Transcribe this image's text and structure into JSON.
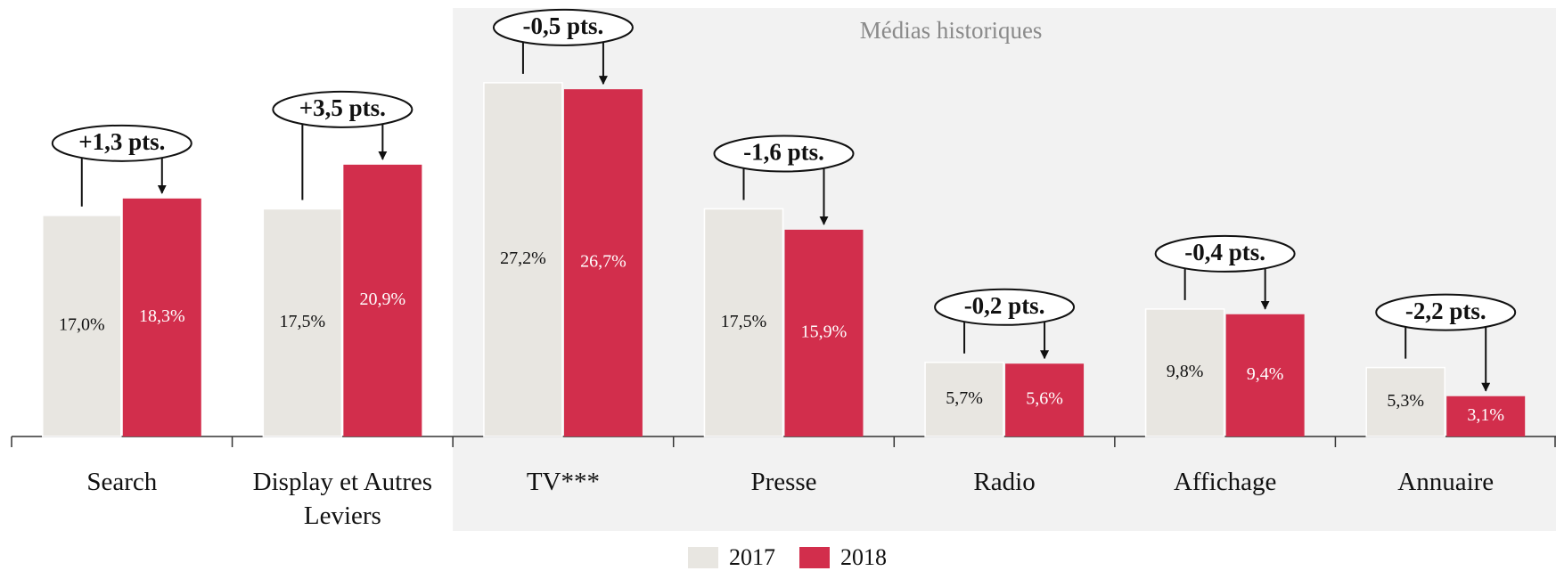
{
  "chart_data": {
    "type": "bar",
    "categories": [
      "Search",
      "Display et Autres Leviers",
      "TV***",
      "Presse",
      "Radio",
      "Affichage",
      "Annuaire"
    ],
    "series": [
      {
        "name": "2017",
        "color": "#e8e6e1",
        "label_color": "#111111",
        "values": [
          17.0,
          17.5,
          27.2,
          17.5,
          5.7,
          9.8,
          5.3
        ],
        "value_labels": [
          "17,0%",
          "17,5%",
          "27,2%",
          "17,5%",
          "5,7%",
          "9,8%",
          "5,3%"
        ]
      },
      {
        "name": "2018",
        "color": "#d22e4c",
        "label_color": "#ffffff",
        "values": [
          18.3,
          20.9,
          26.7,
          15.9,
          5.6,
          9.4,
          3.1
        ],
        "value_labels": [
          "18,3%",
          "20,9%",
          "26,7%",
          "15,9%",
          "5,6%",
          "9,4%",
          "3,1%"
        ]
      }
    ],
    "annotations": [
      "+1,3 pts.",
      "+3,5 pts.",
      "-0,5 pts.",
      "-1,6 pts.",
      "-0,2 pts.",
      "-0,4 pts.",
      "-2,2 pts."
    ],
    "region": {
      "label": "Médias historiques",
      "from_category": 2
    }
  }
}
